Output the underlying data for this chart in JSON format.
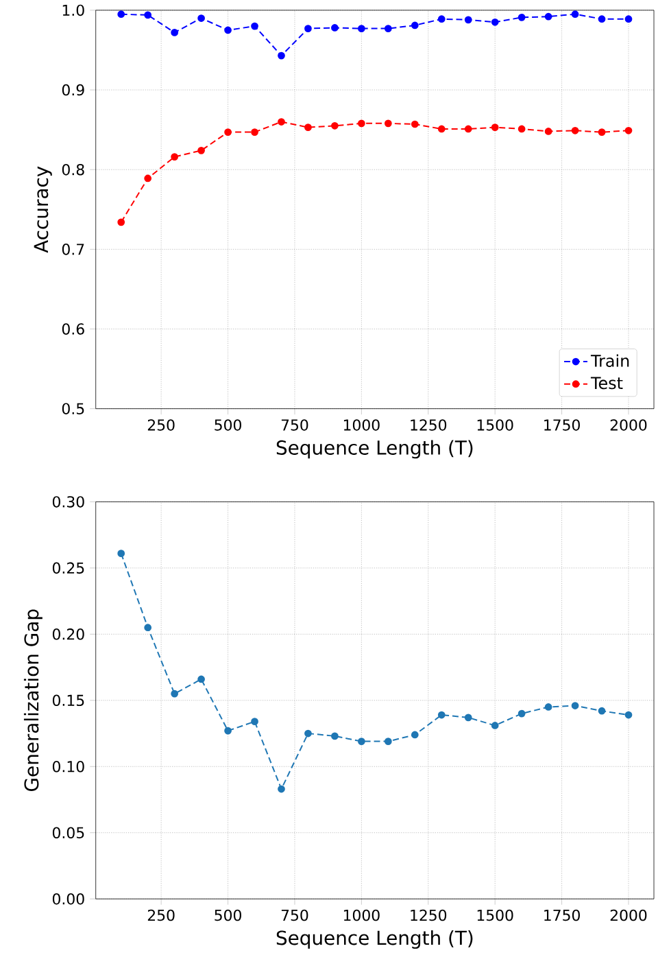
{
  "chart_data": [
    {
      "type": "line",
      "xlabel": "Sequence Length (T)",
      "ylabel": "Accuracy",
      "x": [
        100,
        200,
        300,
        400,
        500,
        600,
        700,
        800,
        900,
        1000,
        1100,
        1200,
        1300,
        1400,
        1500,
        1600,
        1700,
        1800,
        1900,
        2000
      ],
      "series": [
        {
          "name": "Train",
          "color": "#0000ff",
          "values": [
            0.995,
            0.994,
            0.972,
            0.99,
            0.975,
            0.98,
            0.943,
            0.977,
            0.978,
            0.977,
            0.977,
            0.981,
            0.989,
            0.988,
            0.985,
            0.991,
            0.992,
            0.995,
            0.989,
            0.989
          ]
        },
        {
          "name": "Test",
          "color": "#ff0000",
          "values": [
            0.734,
            0.789,
            0.816,
            0.824,
            0.847,
            0.847,
            0.86,
            0.853,
            0.855,
            0.858,
            0.858,
            0.857,
            0.851,
            0.851,
            0.853,
            0.851,
            0.848,
            0.849,
            0.847,
            0.849
          ]
        }
      ],
      "xlim": [
        5,
        2095
      ],
      "ylim": [
        0.5,
        1.0
      ],
      "xticks": [
        250,
        500,
        750,
        1000,
        1250,
        1500,
        1750,
        2000
      ],
      "yticks": [
        0.5,
        0.6,
        0.7,
        0.8,
        0.9,
        {
          "value": 1.0,
          "label": "1.0"
        }
      ],
      "grid": true,
      "legend": "bottom right",
      "marker": "circle",
      "line_style": "dashed"
    },
    {
      "type": "line",
      "xlabel": "Sequence Length (T)",
      "ylabel": "Generalization Gap",
      "x": [
        100,
        200,
        300,
        400,
        500,
        600,
        700,
        800,
        900,
        1000,
        1100,
        1200,
        1300,
        1400,
        1500,
        1600,
        1700,
        1800,
        1900,
        2000
      ],
      "series": [
        {
          "color": "#1f77b4",
          "values": [
            0.261,
            0.205,
            0.155,
            0.166,
            0.127,
            0.134,
            0.083,
            0.125,
            0.123,
            0.119,
            0.119,
            0.124,
            0.139,
            0.137,
            0.131,
            0.14,
            0.145,
            0.146,
            0.142,
            0.139
          ]
        }
      ],
      "xlim": [
        5,
        2095
      ],
      "ylim": [
        0.0,
        0.3
      ],
      "xticks": [
        250,
        500,
        750,
        1000,
        1250,
        1500,
        1750,
        2000
      ],
      "yticks": [
        {
          "value": 0.0,
          "label": "0.00"
        },
        {
          "value": 0.05,
          "label": "0.05"
        },
        {
          "value": 0.1,
          "label": "0.10"
        },
        {
          "value": 0.15,
          "label": "0.15"
        },
        {
          "value": 0.2,
          "label": "0.20"
        },
        {
          "value": 0.25,
          "label": "0.25"
        },
        {
          "value": 0.3,
          "label": "0.30"
        }
      ],
      "grid": true,
      "marker": "circle",
      "line_style": "dashed"
    }
  ]
}
